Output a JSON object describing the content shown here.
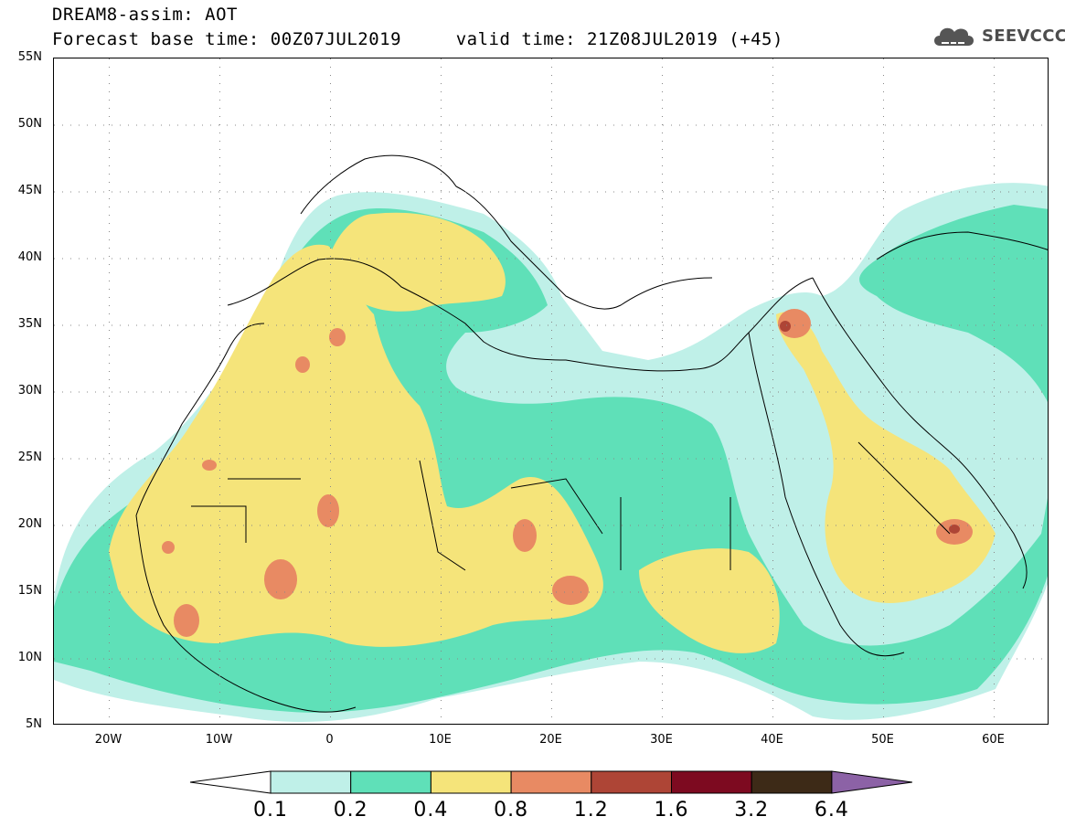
{
  "header": {
    "title_line1": "DREAM8-assim: AOT",
    "title_line2": "Forecast base time: 00Z07JUL2019     valid time: 21Z08JUL2019 (+45)"
  },
  "brand": {
    "name": "SEEVCCC",
    "icon": "cloud-logo-icon"
  },
  "map": {
    "product": "AOT",
    "lat_range": [
      5,
      55
    ],
    "lon_range": [
      -25,
      65
    ],
    "lat_labels": [
      "55N",
      "50N",
      "45N",
      "40N",
      "35N",
      "30N",
      "25N",
      "20N",
      "15N",
      "10N",
      "5N"
    ],
    "lon_labels": [
      "20W",
      "10W",
      "0",
      "10E",
      "20E",
      "30E",
      "40E",
      "50E",
      "60E"
    ]
  },
  "colorbar": {
    "levels": [
      "0.1",
      "0.2",
      "0.4",
      "0.8",
      "1.2",
      "1.6",
      "3.2",
      "6.4"
    ],
    "colors": [
      "#bff0e8",
      "#5fe0b8",
      "#f5e47a",
      "#e88a63",
      "#ae4536",
      "#7d0a20",
      "#3d2a17"
    ],
    "under_color": "#ffffff",
    "over_color": "#8c62a6"
  }
}
